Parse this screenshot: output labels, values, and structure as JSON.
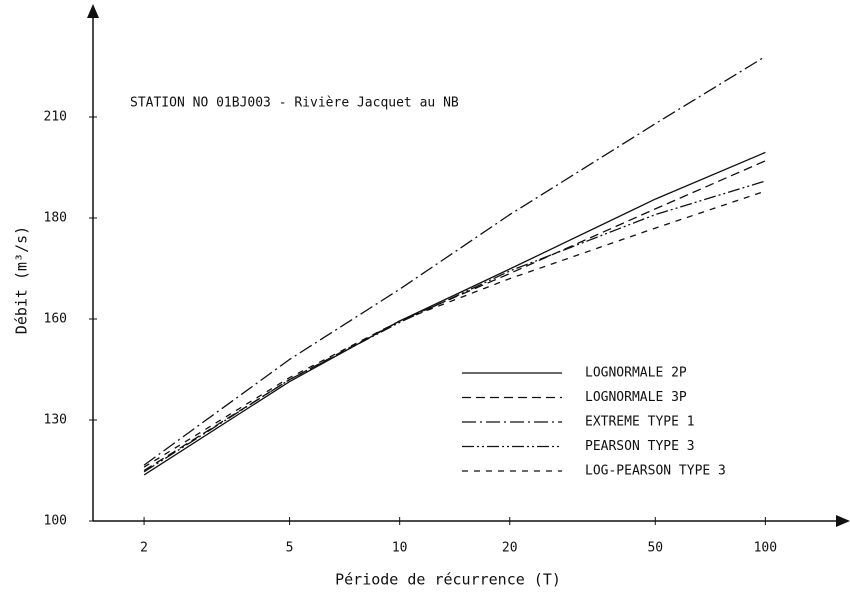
{
  "chart_data": {
    "type": "line",
    "title": "STATION NO 01BJ003 - Rivière Jacquet au NB",
    "x_label": "Période de récurrence (T)",
    "y_label": "Débit (m³/s)",
    "x": [
      2,
      5,
      10,
      20,
      50,
      100
    ],
    "xlim": [
      1.45,
      160
    ],
    "xticks": [
      2,
      5,
      10,
      20,
      50,
      100
    ],
    "xscale": "log",
    "ylim": [
      100,
      242
    ],
    "yticks": [
      100,
      130,
      160,
      180,
      210
    ],
    "legend": "lower right",
    "series": [
      {
        "name": "LOGNORMALE 2P",
        "color": "#111111",
        "dash": "",
        "values": [
          113.7,
          141.4,
          159.4,
          169.9,
          185.6,
          199.5
        ]
      },
      {
        "name": "LOGNORMALE 3P",
        "color": "#111111",
        "dash": "9 5",
        "values": [
          115,
          142,
          159.4,
          169,
          182.7,
          197
        ]
      },
      {
        "name": "EXTREME TYPE 1",
        "color": "#111111",
        "dash": "14 4 2 4",
        "values": [
          116.6,
          148,
          165.9,
          181,
          208,
          228
        ]
      },
      {
        "name": "PEARSON TYPE 3",
        "color": "#111111",
        "dash": "12 3 2 3 2 3",
        "values": [
          114.6,
          142,
          159,
          169.5,
          181,
          191
        ]
      },
      {
        "name": "LOG-PEARSON TYPE 3",
        "color": "#111111",
        "dash": "6 6",
        "values": [
          116,
          142.6,
          159.4,
          168,
          178,
          188
        ]
      }
    ]
  }
}
